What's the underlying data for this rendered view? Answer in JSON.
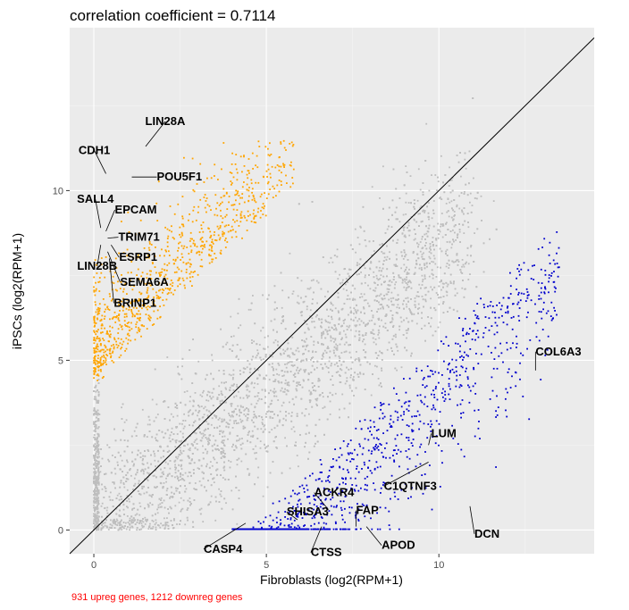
{
  "chart_data": {
    "type": "scatter",
    "title": "correlation coefficient = 0.7114",
    "xlabel": "Fibroblasts (log2(RPM+1)",
    "ylabel": "iPSCs (log2(RPM+1)",
    "xlim": [
      -0.7,
      14.5
    ],
    "ylim": [
      -0.7,
      14.8
    ],
    "xticks": [
      0,
      5,
      10
    ],
    "yticks": [
      0,
      5,
      10
    ],
    "diagonal": "y = x",
    "grid": true,
    "colors": {
      "background": "#ebebeb",
      "grid_major": "#ffffff",
      "grid_minor": "#f5f5f5",
      "not_significant": "#bebebe",
      "upregulated": "#ffa500",
      "downregulated": "#0000cd",
      "footnote": "#ff0000"
    },
    "series": [
      {
        "category": "not_significant",
        "color": "#bebebe",
        "count_shown": "many"
      },
      {
        "category": "upregulated",
        "color": "#ffa500",
        "count": 931
      },
      {
        "category": "downregulated",
        "color": "#0000cd",
        "count": 1212
      }
    ],
    "labeled_points": [
      {
        "label": "LIN28A",
        "x": 1.5,
        "y": 11.3,
        "group": "up"
      },
      {
        "label": "CDH1",
        "x": 0.35,
        "y": 10.5,
        "group": "up"
      },
      {
        "label": "POU5F1",
        "x": 1.1,
        "y": 10.4,
        "group": "up"
      },
      {
        "label": "SALL4",
        "x": 0.2,
        "y": 8.9,
        "group": "up"
      },
      {
        "label": "EPCAM",
        "x": 0.35,
        "y": 8.8,
        "group": "up"
      },
      {
        "label": "TRIM71",
        "x": 0.4,
        "y": 8.6,
        "group": "up"
      },
      {
        "label": "ESRP1",
        "x": 0.5,
        "y": 8.4,
        "group": "up"
      },
      {
        "label": "SEMA6A",
        "x": 0.4,
        "y": 8.2,
        "group": "up"
      },
      {
        "label": "LIN28B",
        "x": 0.2,
        "y": 8.4,
        "group": "up"
      },
      {
        "label": "BRINP1",
        "x": 0.45,
        "y": 8.0,
        "group": "up"
      },
      {
        "label": "COL6A3",
        "x": 12.8,
        "y": 4.7,
        "group": "down"
      },
      {
        "label": "LUM",
        "x": 9.7,
        "y": 2.5,
        "group": "down"
      },
      {
        "label": "C1QTNF3",
        "x": 9.7,
        "y": 2.0,
        "group": "down"
      },
      {
        "label": "ACKR4",
        "x": 6.8,
        "y": 0.6,
        "group": "down"
      },
      {
        "label": "SHISA3",
        "x": 5.9,
        "y": 0.3,
        "group": "down"
      },
      {
        "label": "FAP",
        "x": 7.6,
        "y": 0.1,
        "group": "down"
      },
      {
        "label": "DCN",
        "x": 10.9,
        "y": 0.7,
        "group": "down"
      },
      {
        "label": "CASP4",
        "x": 4.4,
        "y": 0.2,
        "group": "down"
      },
      {
        "label": "CTSS",
        "x": 6.6,
        "y": 0.1,
        "group": "down"
      },
      {
        "label": "APOD",
        "x": 7.9,
        "y": 0.1,
        "group": "down"
      }
    ],
    "annotations": [
      "931 upreg genes, 1212 downreg genes"
    ]
  }
}
